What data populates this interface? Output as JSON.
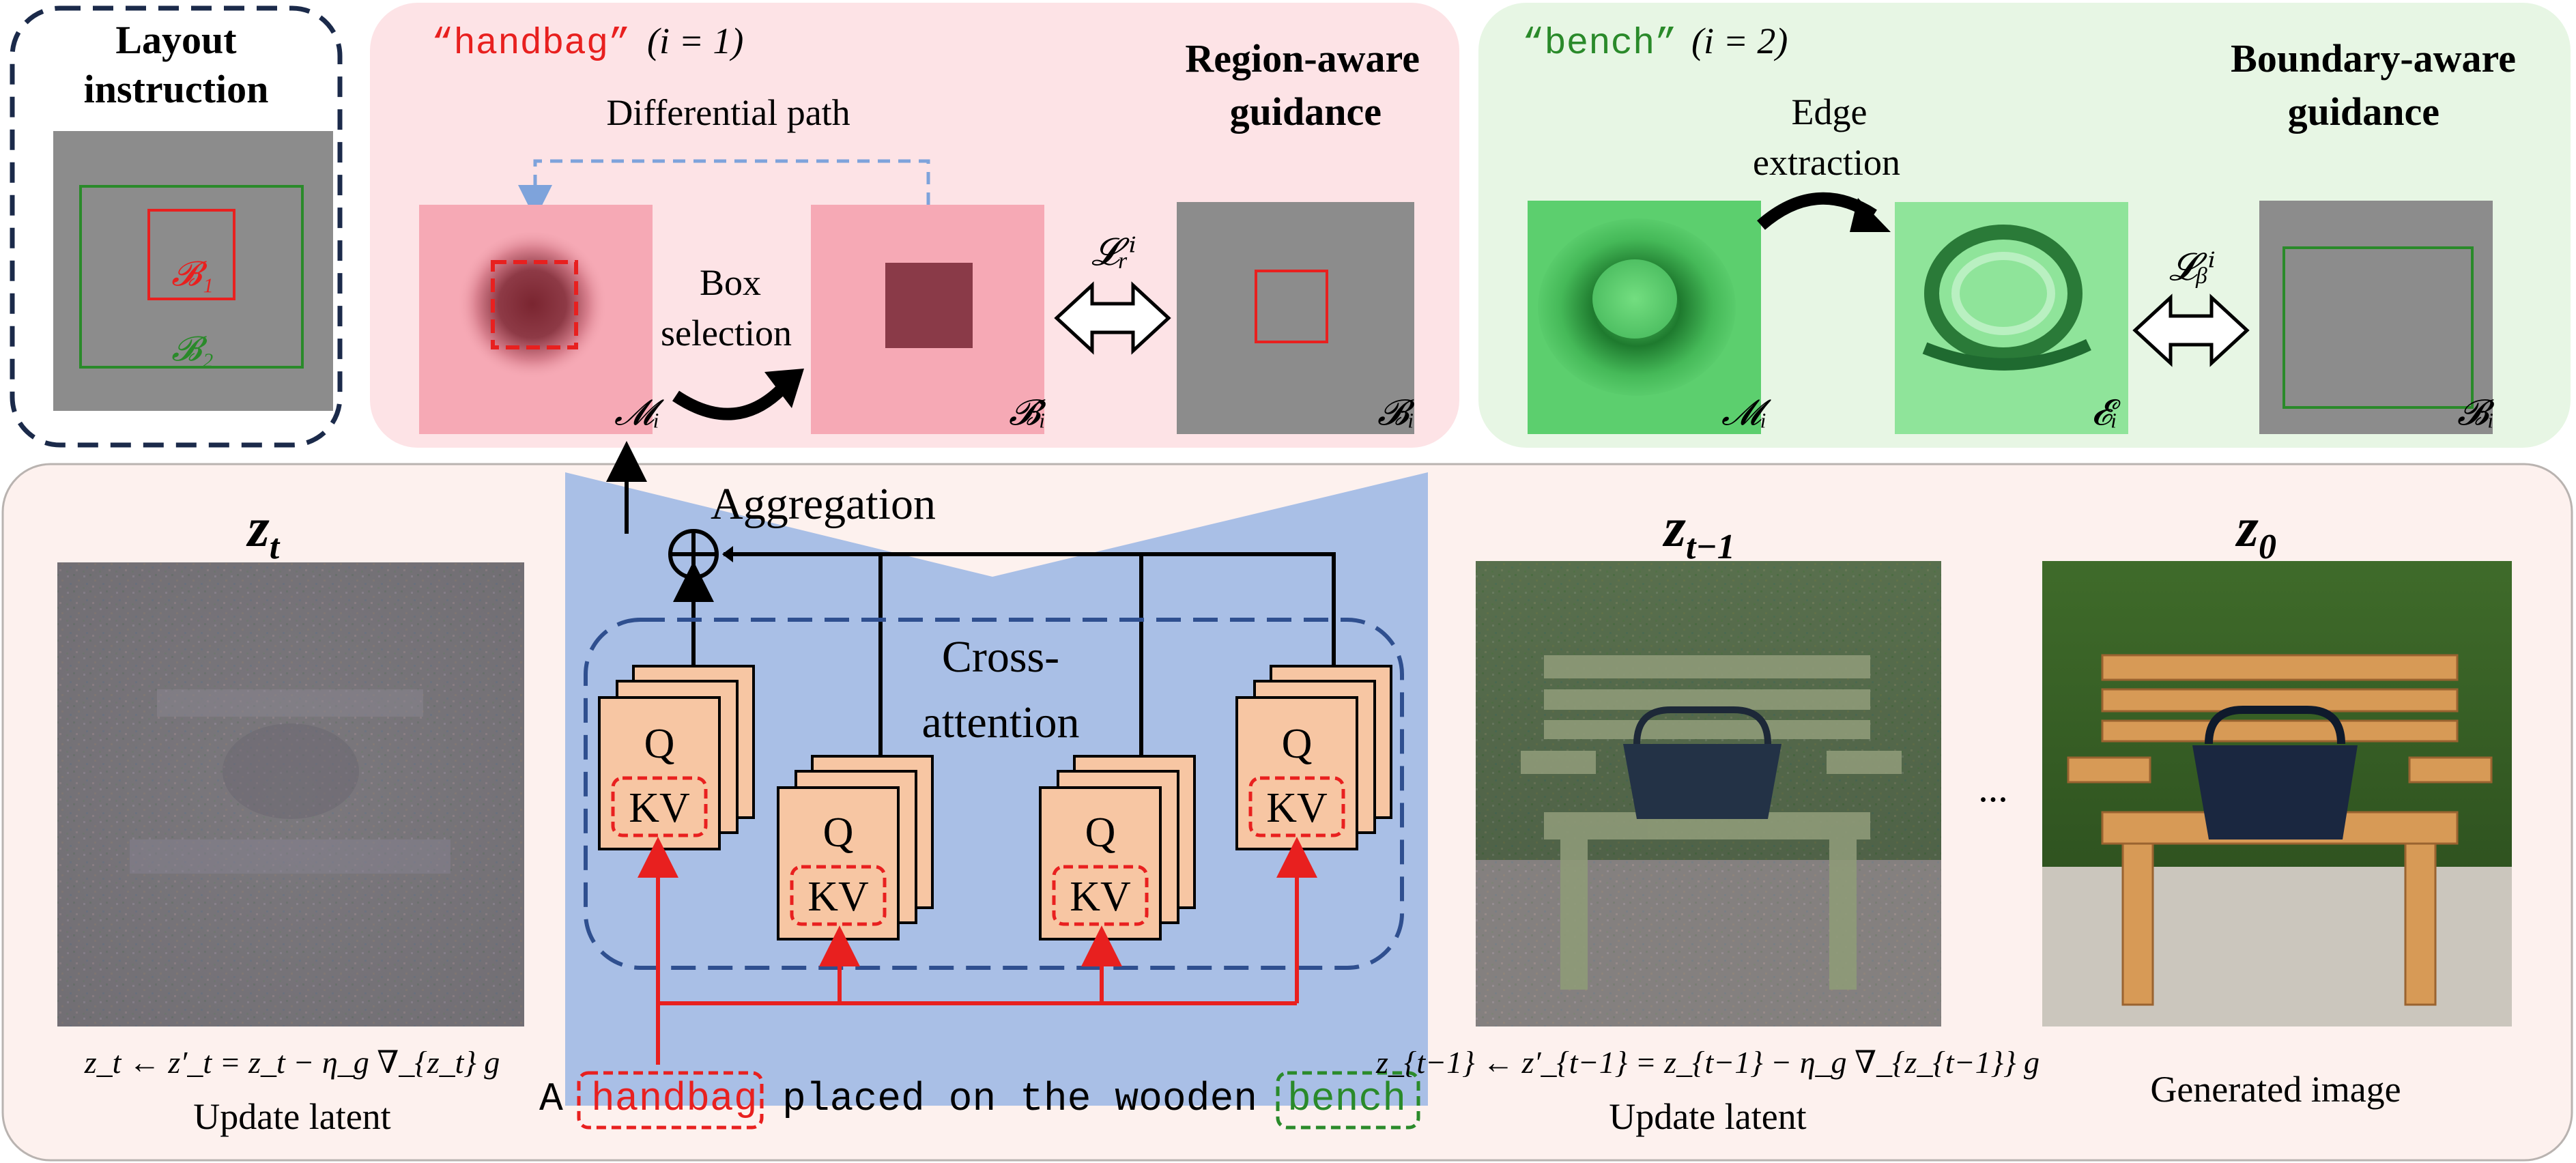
{
  "layout_box": {
    "title_line1": "Layout",
    "title_line2": "instruction",
    "label_b1": "𝓑₁",
    "label_b2": "𝓑₂"
  },
  "region_panel": {
    "quoted_word": "“handbag”",
    "index_label": "(i = 1)",
    "title_line1": "Region-aware",
    "title_line2": "guidance",
    "differential_path": "Differential path",
    "box_selection_line1": "Box",
    "box_selection_line2": "selection",
    "loss_label": "𝓛ᵣⁱ",
    "mask_label": "𝓜ᵢ",
    "bhat_label": "𝓑̂ᵢ",
    "b_label": "𝓑ᵢ"
  },
  "boundary_panel": {
    "quoted_word": "“bench”",
    "index_label": "(i = 2)",
    "title_line1": "Boundary-aware",
    "title_line2": "guidance",
    "edge_line1": "Edge",
    "edge_line2": "extraction",
    "loss_label": "𝓛ᵦⁱ",
    "mask_label": "𝓜ᵢ",
    "edge_label": "𝓔ᵢ",
    "b_label": "𝓑ᵢ"
  },
  "main_panel": {
    "zt_label": "z",
    "zt_sub": "t",
    "zt1_label": "z",
    "zt1_sub": "t−1",
    "z0_label": "z",
    "z0_sub": "0",
    "aggregation": "Aggregation",
    "cross_line1": "Cross-",
    "cross_line2": "attention",
    "q_label": "Q",
    "kv_label": "KV",
    "ellipsis": "...",
    "eq_left": "z_t ← z′_t = z_t − η_g ∇_{z_t} g",
    "update_latent_left": "Update latent",
    "eq_right": "z_{t−1} ← z′_{t−1} = z_{t−1} − η_g ∇_{z_{t−1}} g",
    "update_latent_right": "Update latent",
    "generated_image": "Generated image",
    "prompt_word_1": "A",
    "prompt_word_2": "handbag",
    "prompt_word_3": "placed on the wooden",
    "prompt_word_4": "bench"
  },
  "colors": {
    "red": "#e8201f",
    "green": "#2a8a2a",
    "navy": "#1b2a4a",
    "pink_panel": "#fde3e6",
    "green_panel": "#e7f6e4",
    "main_panel": "#fdf1ee",
    "unet_blue": "#a9bfe6",
    "qkv_fill": "#f7c6a3"
  }
}
